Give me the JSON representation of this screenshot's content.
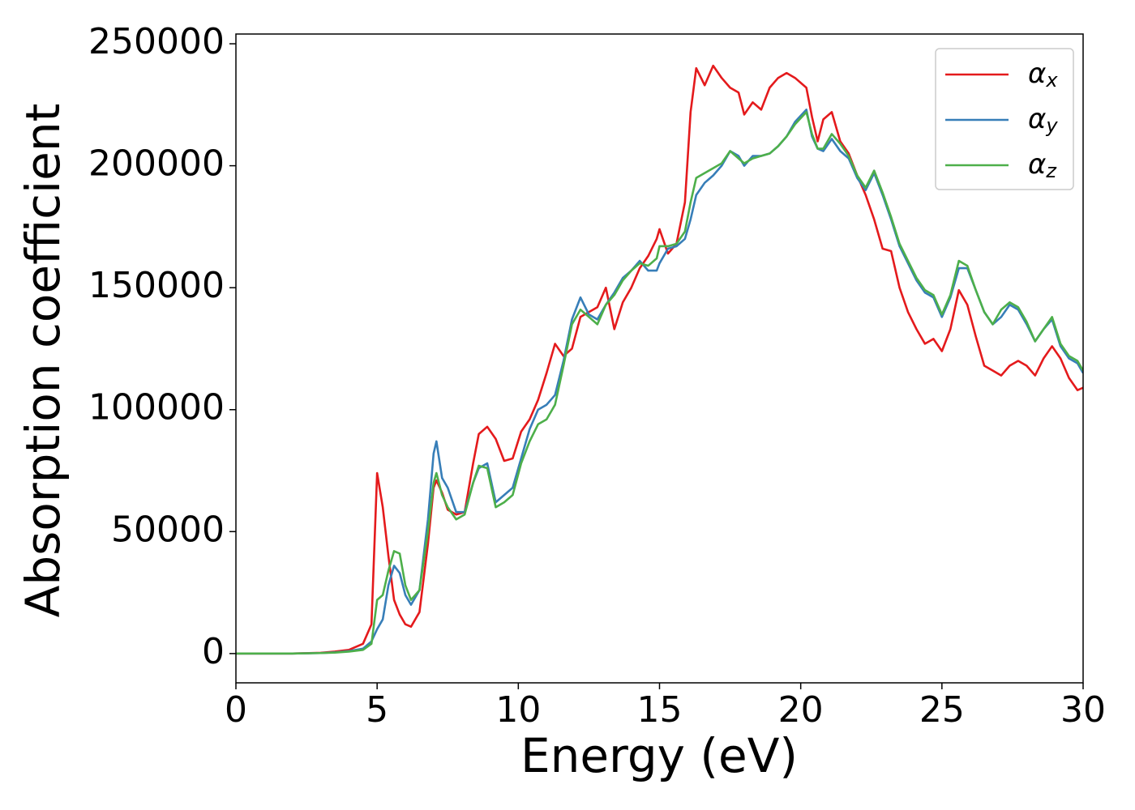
{
  "chart_data": {
    "type": "line",
    "xlabel": "Energy (eV)",
    "ylabel": "Absorption coefficient",
    "x": [
      0,
      1,
      2,
      3,
      3.5,
      4,
      4.5,
      4.8,
      5.0,
      5.2,
      5.4,
      5.6,
      5.8,
      6.0,
      6.2,
      6.5,
      6.8,
      7.0,
      7.1,
      7.3,
      7.5,
      7.8,
      8.1,
      8.4,
      8.6,
      8.9,
      9.2,
      9.5,
      9.8,
      10.1,
      10.4,
      10.7,
      11.0,
      11.3,
      11.6,
      11.9,
      12.2,
      12.5,
      12.8,
      13.1,
      13.4,
      13.7,
      14.0,
      14.3,
      14.6,
      14.9,
      15.0,
      15.3,
      15.6,
      15.9,
      16.1,
      16.3,
      16.6,
      16.9,
      17.2,
      17.5,
      17.8,
      18.0,
      18.3,
      18.6,
      18.9,
      19.2,
      19.5,
      19.8,
      20.2,
      20.4,
      20.6,
      20.8,
      21.1,
      21.4,
      21.7,
      22.0,
      22.3,
      22.6,
      22.9,
      23.2,
      23.5,
      23.8,
      24.1,
      24.4,
      24.7,
      25.0,
      25.3,
      25.6,
      25.9,
      26.2,
      26.5,
      26.8,
      27.1,
      27.4,
      27.7,
      28.0,
      28.3,
      28.6,
      28.9,
      29.2,
      29.5,
      29.8,
      30.0
    ],
    "series": [
      {
        "name": "αx",
        "color": "#e41a1c",
        "values": [
          0,
          0,
          0,
          300,
          800,
          1500,
          4000,
          12000,
          74000,
          60000,
          40000,
          22000,
          16000,
          12000,
          11000,
          17000,
          45000,
          68000,
          71000,
          66000,
          59000,
          57000,
          58000,
          78000,
          90000,
          93000,
          88000,
          79000,
          80000,
          91000,
          96000,
          104000,
          115000,
          127000,
          122000,
          125000,
          138000,
          140000,
          142000,
          150000,
          133000,
          144000,
          150000,
          158000,
          163000,
          170000,
          174000,
          164000,
          168000,
          185000,
          222000,
          240000,
          233000,
          241000,
          236000,
          232000,
          230000,
          221000,
          226000,
          223000,
          232000,
          236000,
          238000,
          236000,
          232000,
          220000,
          210000,
          219000,
          222000,
          210000,
          205000,
          196000,
          188000,
          178000,
          166000,
          165000,
          150000,
          140000,
          133000,
          127000,
          129000,
          124000,
          133000,
          149000,
          143000,
          130000,
          118000,
          116000,
          114000,
          118000,
          120000,
          118000,
          114000,
          121000,
          126000,
          121000,
          113000,
          108000,
          109000
        ]
      },
      {
        "name": "αy",
        "color": "#377eb8",
        "values": [
          0,
          0,
          0,
          200,
          500,
          1000,
          2000,
          5000,
          10000,
          14000,
          28000,
          36000,
          33000,
          24000,
          20000,
          26000,
          55000,
          82000,
          87000,
          72000,
          68000,
          58000,
          58000,
          70000,
          76000,
          78000,
          62000,
          65000,
          68000,
          80000,
          92000,
          100000,
          102000,
          106000,
          120000,
          137000,
          146000,
          139000,
          137000,
          143000,
          148000,
          154000,
          157000,
          161000,
          157000,
          157000,
          160000,
          166000,
          167000,
          170000,
          178000,
          188000,
          193000,
          196000,
          200000,
          206000,
          204000,
          200000,
          204000,
          204000,
          205000,
          208000,
          212000,
          218000,
          223000,
          212000,
          207000,
          206000,
          211000,
          206000,
          203000,
          195000,
          190000,
          197000,
          188000,
          178000,
          167000,
          160000,
          153000,
          148000,
          146000,
          138000,
          146000,
          158000,
          158000,
          149000,
          140000,
          135000,
          138000,
          143000,
          141000,
          135000,
          128000,
          133000,
          137000,
          126000,
          121000,
          119000,
          115000
        ]
      },
      {
        "name": "αz",
        "color": "#4daf4a",
        "values": [
          0,
          0,
          0,
          200,
          400,
          800,
          1500,
          4000,
          22000,
          24000,
          34000,
          42000,
          41000,
          28000,
          22000,
          26000,
          50000,
          70000,
          74000,
          65000,
          60000,
          55000,
          57000,
          70000,
          77000,
          76000,
          60000,
          62000,
          65000,
          78000,
          87000,
          94000,
          96000,
          102000,
          118000,
          135000,
          141000,
          138000,
          135000,
          143000,
          147000,
          153000,
          157000,
          160000,
          159000,
          162000,
          167000,
          167000,
          168000,
          173000,
          185000,
          195000,
          197000,
          199000,
          201000,
          206000,
          203000,
          201000,
          203000,
          204000,
          205000,
          208000,
          212000,
          217000,
          222000,
          213000,
          207000,
          207000,
          213000,
          209000,
          204000,
          196000,
          191000,
          198000,
          189000,
          179000,
          168000,
          161000,
          154000,
          149000,
          147000,
          139000,
          147000,
          161000,
          159000,
          149000,
          140000,
          135000,
          141000,
          144000,
          142000,
          136000,
          128000,
          133000,
          138000,
          127000,
          122000,
          120000,
          116000
        ]
      }
    ],
    "xlim": [
      0,
      30
    ],
    "xticks": [
      0,
      5,
      10,
      15,
      20,
      25,
      30
    ],
    "ylim": [
      -12000,
      254000
    ],
    "yticks": [
      0,
      50000,
      100000,
      150000,
      200000,
      250000
    ],
    "grid": false,
    "legend": "upper right"
  }
}
